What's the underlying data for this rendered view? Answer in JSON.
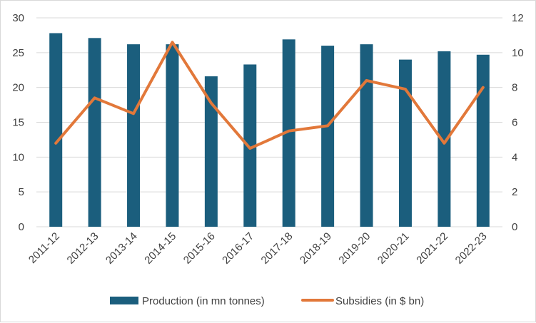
{
  "chart_data": {
    "type": "bar+line",
    "categories": [
      "2011-12",
      "2012-13",
      "2013-14",
      "2014-15",
      "2015-16",
      "2016-17",
      "2017-18",
      "2018-19",
      "2019-20",
      "2020-21",
      "2021-22",
      "2022-23"
    ],
    "series": [
      {
        "name": "Production (in mn tonnes)",
        "type": "bar",
        "axis": "left",
        "color": "#1b5e7d",
        "values": [
          27.8,
          27.1,
          26.2,
          26.2,
          21.6,
          23.3,
          26.9,
          26.0,
          26.2,
          24.0,
          25.2,
          24.7
        ]
      },
      {
        "name": "Subsidies (in $ bn)",
        "type": "line",
        "axis": "right",
        "color": "#e2783a",
        "values": [
          4.8,
          7.4,
          6.5,
          10.6,
          7.1,
          4.5,
          5.5,
          5.8,
          8.4,
          7.9,
          4.8,
          8.0
        ]
      }
    ],
    "y_left": {
      "min": 0,
      "max": 30,
      "ticks": [
        "0",
        "5",
        "10",
        "15",
        "20",
        "25",
        "30"
      ]
    },
    "y_right": {
      "min": 0,
      "max": 12,
      "ticks": [
        "0",
        "2",
        "4",
        "6",
        "8",
        "10",
        "12"
      ]
    },
    "grid": true,
    "legend_position": "bottom"
  }
}
